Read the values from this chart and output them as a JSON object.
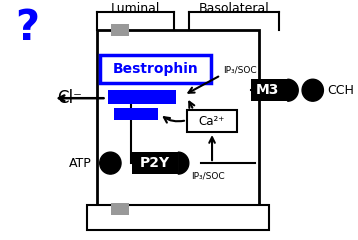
{
  "bg_color": "#ffffff",
  "luminal_label": "Luminal",
  "basolateral_label": "Basolateral",
  "question_mark": "?",
  "question_color": "#0000ff",
  "bestrophin_label": "Bestrophin",
  "bestrophin_color": "#0000ff",
  "cl_label": "Cl⁻",
  "atp_label": "ATP",
  "p2y_label": "P2Y",
  "m3_label": "M3",
  "cch_label": "CCH",
  "ca_label": "Ca²⁺",
  "ip3_soc_top": "IP₃/SOC",
  "ip3_soc_bottom": "IP₃/SOC"
}
